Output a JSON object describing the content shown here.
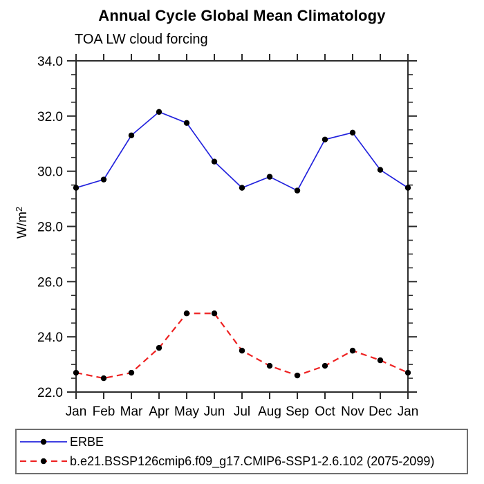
{
  "chart_data": {
    "type": "line",
    "title": "Annual Cycle Global Mean Climatology",
    "subtitle": "TOA LW cloud forcing",
    "ylabel": "W/m²",
    "xlabel": "",
    "categories": [
      "Jan",
      "Feb",
      "Mar",
      "Apr",
      "May",
      "Jun",
      "Jul",
      "Aug",
      "Sep",
      "Oct",
      "Nov",
      "Dec",
      "Jan"
    ],
    "ylim": [
      22.0,
      34.0
    ],
    "ytick_step": 2.0,
    "ytick_labels": [
      "22.0",
      "24.0",
      "26.0",
      "28.0",
      "30.0",
      "32.0",
      "34.0"
    ],
    "y_minor_tick_step": 0.5,
    "grid": false,
    "tick_direction": "outward",
    "legend_position": "bottom-box",
    "axis_color": "#2b2b2b",
    "marker_color": "#000000",
    "series": [
      {
        "name": "ERBE",
        "color": "#2222dd",
        "line_style": "solid",
        "marker": "circle",
        "values": [
          29.4,
          29.7,
          31.3,
          32.15,
          31.75,
          30.35,
          29.4,
          29.8,
          29.3,
          31.15,
          31.4,
          30.05,
          29.4
        ]
      },
      {
        "name": "b.e21.BSSP126cmip6.f09_g17.CMIP6-SSP1-2.6.102 (2075-2099)",
        "color": "#ee2222",
        "line_style": "dashed",
        "marker": "circle",
        "values": [
          22.7,
          22.5,
          22.7,
          23.6,
          24.85,
          24.85,
          23.5,
          22.95,
          22.6,
          22.95,
          23.5,
          23.15,
          22.7
        ]
      }
    ]
  }
}
